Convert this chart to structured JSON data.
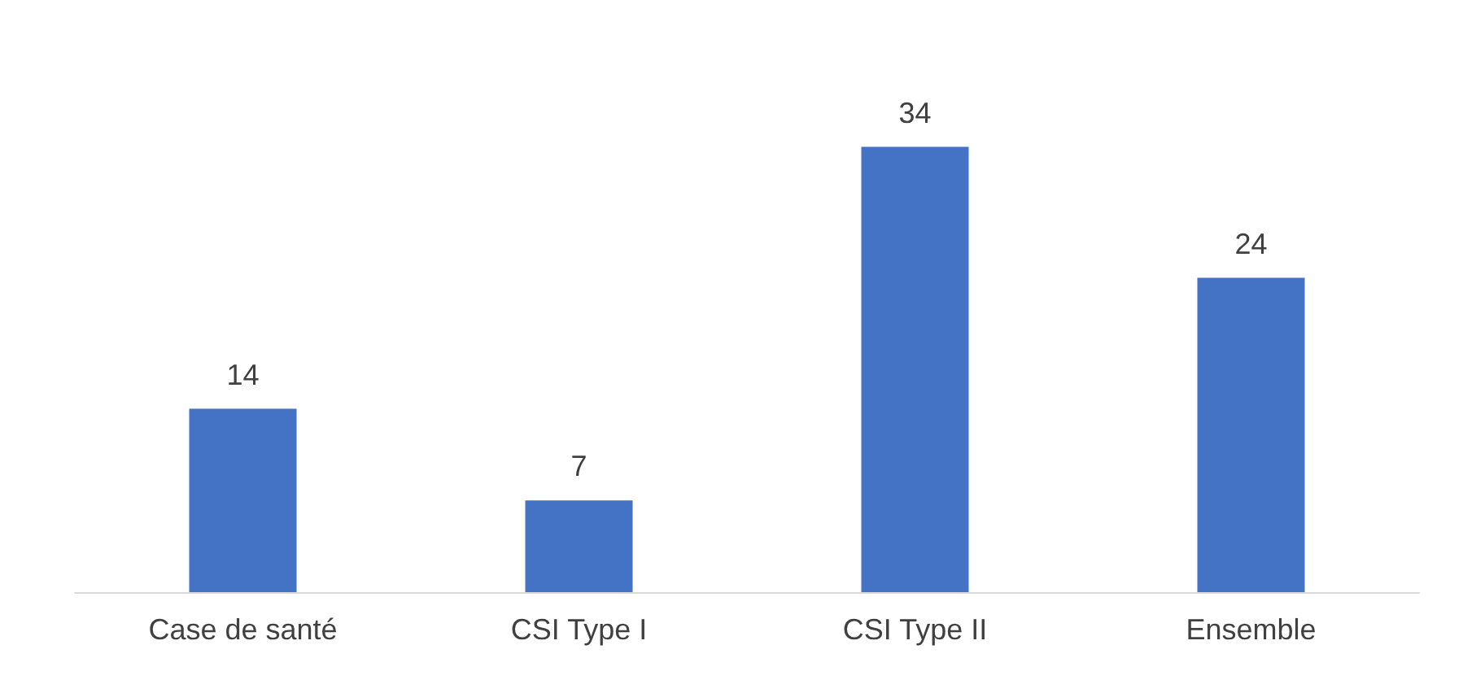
{
  "chart_data": {
    "type": "bar",
    "categories": [
      "Case de santé",
      "CSI Type I",
      "CSI Type II",
      "Ensemble"
    ],
    "values": [
      14,
      7,
      34,
      24
    ],
    "color": "#4472c4",
    "data_labels": true,
    "tick_labels": "x"
  }
}
